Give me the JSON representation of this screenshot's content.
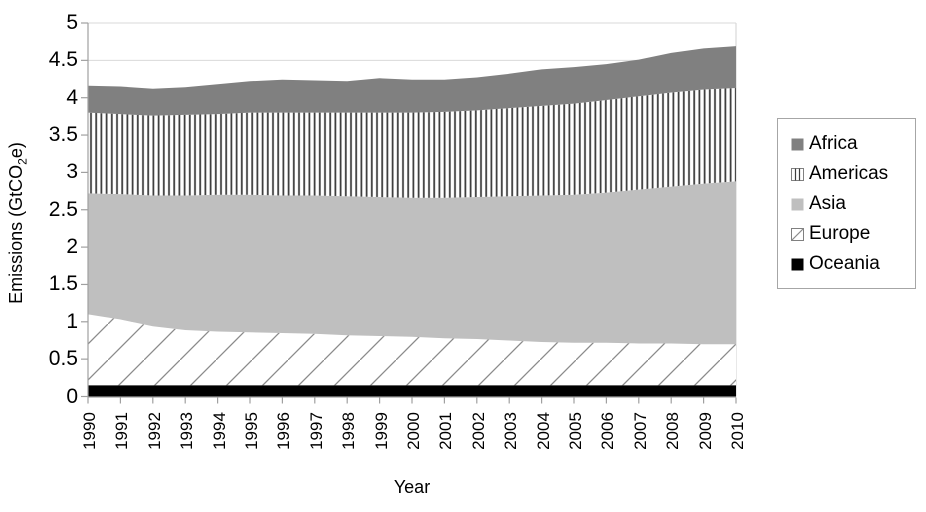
{
  "figure": {
    "background": "#ffffff"
  },
  "chart_data": {
    "type": "area",
    "stacked": true,
    "title": "",
    "xlabel": "Year",
    "ylabel": "Emissions (GtCO2e)",
    "ylabel_parts": {
      "pre": "Emissions (GtCO",
      "sub": "2",
      "post": "e)"
    },
    "ylim": [
      0,
      5
    ],
    "ytick_step": 0.5,
    "y_tick_labels": [
      "0",
      "0.5",
      "1",
      "1.5",
      "2",
      "2.5",
      "3",
      "3.5",
      "4",
      "4.5",
      "5"
    ],
    "grid": "horizontal",
    "legend_position": "right",
    "legend_order_top_to_bottom": [
      "Africa",
      "Americas",
      "Asia",
      "Europe",
      "Oceania"
    ],
    "x": [
      1990,
      1991,
      1992,
      1993,
      1994,
      1995,
      1996,
      1997,
      1998,
      1999,
      2000,
      2001,
      2002,
      2003,
      2004,
      2005,
      2006,
      2007,
      2008,
      2009,
      2010
    ],
    "series": [
      {
        "name": "Oceania",
        "style": "solid",
        "color": "#000000",
        "values": [
          0.15,
          0.15,
          0.15,
          0.15,
          0.15,
          0.15,
          0.15,
          0.15,
          0.15,
          0.15,
          0.15,
          0.15,
          0.15,
          0.15,
          0.15,
          0.15,
          0.15,
          0.15,
          0.15,
          0.15,
          0.15
        ]
      },
      {
        "name": "Europe",
        "style": "diagonal-hatch",
        "color": "#8a8a8a",
        "values": [
          0.95,
          0.88,
          0.79,
          0.74,
          0.72,
          0.71,
          0.7,
          0.69,
          0.67,
          0.66,
          0.65,
          0.63,
          0.62,
          0.6,
          0.58,
          0.57,
          0.57,
          0.56,
          0.56,
          0.55,
          0.55
        ]
      },
      {
        "name": "Asia",
        "style": "solid",
        "color": "#bfbfbf",
        "values": [
          1.62,
          1.68,
          1.75,
          1.8,
          1.83,
          1.84,
          1.84,
          1.85,
          1.86,
          1.86,
          1.86,
          1.88,
          1.9,
          1.93,
          1.96,
          1.98,
          2.01,
          2.06,
          2.1,
          2.15,
          2.18
        ]
      },
      {
        "name": "Americas",
        "style": "vertical-hatch",
        "color": "#3f3f3f",
        "values": [
          1.08,
          1.07,
          1.07,
          1.08,
          1.08,
          1.1,
          1.11,
          1.11,
          1.12,
          1.13,
          1.14,
          1.15,
          1.16,
          1.18,
          1.2,
          1.22,
          1.24,
          1.25,
          1.26,
          1.26,
          1.25
        ]
      },
      {
        "name": "Africa",
        "style": "solid",
        "color": "#808080",
        "values": [
          0.36,
          0.37,
          0.36,
          0.37,
          0.4,
          0.42,
          0.44,
          0.43,
          0.42,
          0.46,
          0.44,
          0.43,
          0.44,
          0.46,
          0.49,
          0.49,
          0.48,
          0.49,
          0.53,
          0.55,
          0.56
        ]
      }
    ]
  },
  "colors": {
    "africa_fill": "#808080",
    "asia_fill": "#bfbfbf",
    "oceania_fill": "#000000",
    "vertical_hatch_line": "#3f3f3f",
    "diagonal_hatch_line": "#8a8a8a",
    "gridline": "#d9d9d9",
    "axis": "#a0a0a0",
    "plot_right_border": "#d9d9d9",
    "legend_border": "#a6a6a6",
    "text": "#000000"
  }
}
